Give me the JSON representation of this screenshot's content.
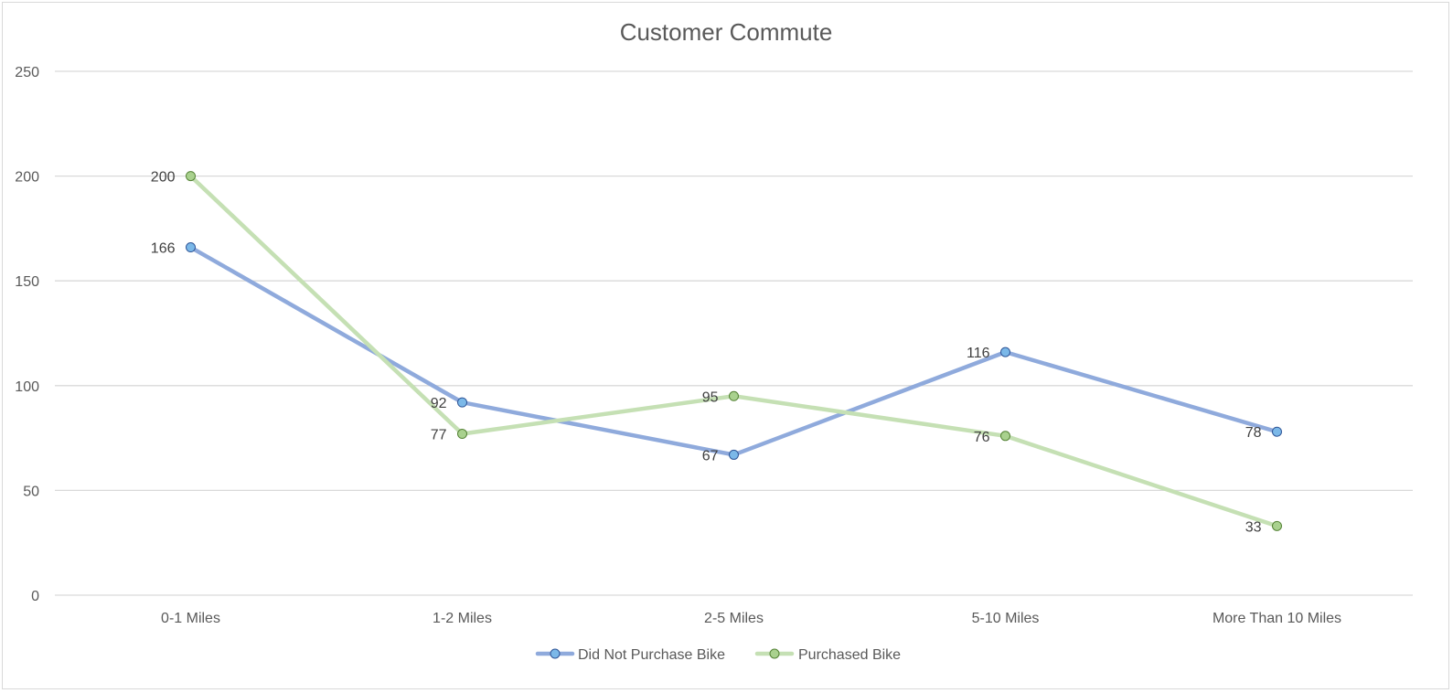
{
  "chart_data": {
    "type": "line",
    "title": "Customer Commute",
    "xlabel": "",
    "ylabel": "",
    "categories": [
      "0-1 Miles",
      "1-2 Miles",
      "2-5 Miles",
      "5-10 Miles",
      "More Than 10 Miles"
    ],
    "ylim": [
      0,
      250
    ],
    "yticks": [
      0,
      50,
      100,
      150,
      200,
      250
    ],
    "grid": true,
    "legend": "bottom",
    "series": [
      {
        "name": "Did Not Purchase Bike",
        "values": [
          166,
          92,
          67,
          116,
          78
        ],
        "color": "#8faadc",
        "marker_color": "#7bb8e8"
      },
      {
        "name": "Purchased Bike",
        "values": [
          200,
          77,
          95,
          76,
          33
        ],
        "color": "#c5e0b4",
        "marker_color": "#a9d18e"
      }
    ]
  }
}
